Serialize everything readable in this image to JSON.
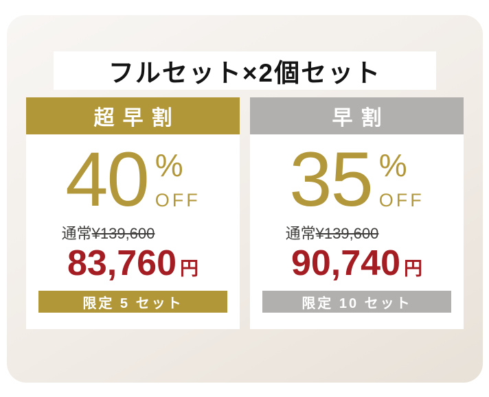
{
  "page": {
    "title": "フルセット×2個セット"
  },
  "colors": {
    "gold_accent": "#b19738",
    "gray_accent": "#b1b0ae",
    "price_red": "#a31d23",
    "regular_price_text": "#3e3d3b",
    "panel_bg_top": "#f8f6f4",
    "panel_bg_bottom": "#e8e1d8",
    "card_bg": "#ffffff",
    "title_text": "#141414",
    "header_text": "#ffffff"
  },
  "cards": [
    {
      "header": "超早割",
      "discount_number": "40",
      "percent_symbol": "%",
      "off_label": "OFF",
      "regular_label": "通常",
      "regular_price": "¥139,600",
      "sale_price": "83,760",
      "currency": "円",
      "limit_badge": "限定 5 セット",
      "accent_color": "#b19738"
    },
    {
      "header": "早割",
      "discount_number": "35",
      "percent_symbol": "%",
      "off_label": "OFF",
      "regular_label": "通常",
      "regular_price": "¥139,600",
      "sale_price": "90,740",
      "currency": "円",
      "limit_badge": "限定 10 セット",
      "accent_color": "#b1b0ae"
    }
  ]
}
